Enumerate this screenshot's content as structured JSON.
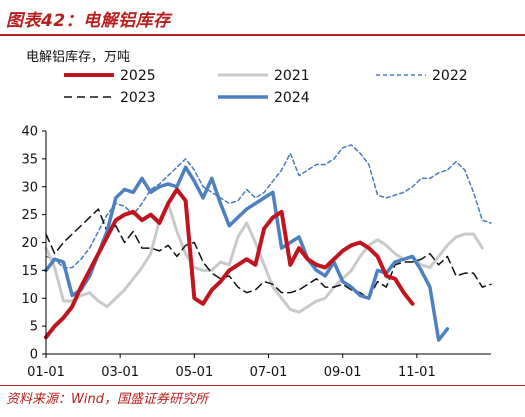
{
  "figure": {
    "title": "图表42：电解铝库存",
    "source": "资料来源：Wind，国盛证券研究所"
  },
  "chart_data": {
    "type": "line",
    "ylabel": "电解铝库存，万吨",
    "ylim": [
      0,
      40
    ],
    "yticks": [
      0,
      5,
      10,
      15,
      20,
      25,
      30,
      35,
      40
    ],
    "xlim": [
      1,
      52
    ],
    "xticks": [
      {
        "week": 1,
        "label": "01-01"
      },
      {
        "week": 9.5,
        "label": "03-01"
      },
      {
        "week": 18,
        "label": "05-01"
      },
      {
        "week": 26.5,
        "label": "07-01"
      },
      {
        "week": 35,
        "label": "09-01"
      },
      {
        "week": 43.5,
        "label": "11-01"
      }
    ],
    "grid": false,
    "legend_position": "top",
    "series": [
      {
        "name": "2025",
        "color": "#c0141e",
        "width": 4,
        "dash": "",
        "values": [
          3,
          5,
          6.5,
          8.5,
          12,
          15,
          18,
          21,
          24,
          25,
          25.5,
          24,
          25,
          23.5,
          27,
          29.5,
          27.5,
          10,
          9,
          11.5,
          13,
          15,
          16,
          17,
          16,
          22.5,
          24.5,
          25.5,
          16,
          19,
          17,
          16,
          15.5,
          17,
          18.5,
          19.5,
          20,
          19,
          17.5,
          14,
          13.5,
          11,
          9
        ]
      },
      {
        "name": "2021",
        "color": "#c9c9c9",
        "width": 3,
        "dash": "",
        "values": [
          19,
          15.5,
          9.5,
          9.5,
          10.5,
          11,
          9.5,
          8.5,
          10,
          11.5,
          13.5,
          15.5,
          18,
          24,
          27,
          22,
          18,
          15.5,
          15,
          15,
          16.5,
          16,
          21,
          23.5,
          20,
          16,
          12,
          10,
          8,
          7.5,
          8.5,
          9.5,
          10,
          12,
          13.5,
          15,
          17.5,
          19.5,
          20.5,
          19.5,
          18,
          17,
          17.5,
          16,
          15.5,
          17.5,
          19.5,
          21,
          21.5,
          21.5,
          19
        ]
      },
      {
        "name": "2022",
        "color": "#4a7abf",
        "width": 1.5,
        "dash": "4,3",
        "values": [
          17.5,
          17,
          15.5,
          15.5,
          17,
          19,
          22,
          25,
          27,
          26.5,
          25,
          27,
          29.5,
          30.5,
          32,
          33.5,
          35,
          33,
          30,
          29,
          28,
          27,
          27.5,
          29.5,
          28,
          29,
          31,
          33,
          36,
          32,
          33,
          34,
          34,
          35,
          37,
          37.5,
          36,
          34,
          28.5,
          28,
          28.5,
          29,
          30,
          31.5,
          31.5,
          32.5,
          33,
          34.5,
          33,
          29,
          24,
          23.5
        ]
      },
      {
        "name": "2023",
        "color": "#111111",
        "width": 1.5,
        "dash": "8,5",
        "values": [
          21.5,
          18,
          20,
          21.5,
          23,
          24.5,
          26,
          22,
          23,
          20,
          22,
          19,
          19,
          18.5,
          19.5,
          17.5,
          19.5,
          20,
          16.5,
          14.5,
          13.5,
          14,
          12,
          11,
          11.5,
          13,
          12.5,
          11,
          11,
          11.5,
          12.5,
          13.5,
          12,
          12,
          12.5,
          11.5,
          11,
          10,
          13,
          12,
          16,
          16.5,
          16.5,
          17,
          18,
          16,
          17.5,
          14,
          14.5,
          14.5,
          12,
          12.5
        ]
      },
      {
        "name": "2024",
        "color": "#4d80c1",
        "width": 3.5,
        "dash": "",
        "values": [
          15,
          17,
          16.5,
          10.5,
          11.5,
          14,
          18,
          22,
          28,
          29.5,
          29,
          31.5,
          29,
          30,
          30.5,
          30,
          33.5,
          31,
          28,
          31.5,
          27,
          23,
          24.5,
          26,
          27,
          28,
          29,
          19,
          20,
          21,
          17,
          15,
          14,
          16.5,
          13,
          12,
          10.5,
          10,
          15,
          14.5,
          16.5,
          17,
          17.5,
          15,
          12,
          2.5,
          4.5
        ]
      }
    ]
  }
}
